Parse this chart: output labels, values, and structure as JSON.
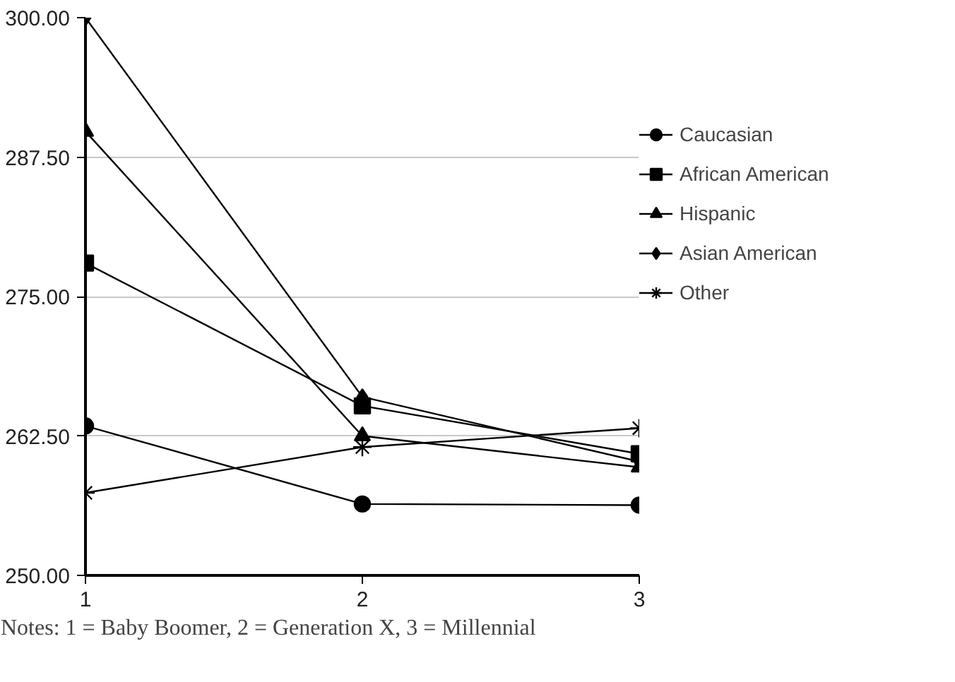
{
  "chart_data": {
    "type": "line",
    "x": [
      1,
      2,
      3
    ],
    "xlim": [
      1,
      3
    ],
    "xticks": [
      1,
      2,
      3
    ],
    "ylim": [
      250,
      300
    ],
    "yticks": [
      {
        "value": 250,
        "label": "250.00"
      },
      {
        "value": 262.5,
        "label": "262.50"
      },
      {
        "value": 275,
        "label": "275.00"
      },
      {
        "value": 287.5,
        "label": "287.50"
      },
      {
        "value": 300,
        "label": "300.00"
      }
    ],
    "grid": "y",
    "legend": "right",
    "line_style": "solid",
    "series": [
      {
        "name": "Caucasian",
        "color": "#000000",
        "marker": "circle",
        "values": [
          263.4,
          256.4,
          256.3
        ]
      },
      {
        "name": "African American",
        "color": "#000000",
        "marker": "square",
        "values": [
          278.0,
          265.2,
          260.9
        ]
      },
      {
        "name": "Hispanic",
        "color": "#000000",
        "marker": "triangle",
        "values": [
          289.8,
          262.5,
          259.7
        ]
      },
      {
        "name": "Asian American",
        "color": "#000000",
        "marker": "diamond",
        "values": [
          300.0,
          266.0,
          260.2
        ]
      },
      {
        "name": "Other",
        "color": "#000000",
        "marker": "cross",
        "values": [
          257.4,
          261.5,
          263.2
        ]
      }
    ],
    "annotations": [
      "Notes: 1 = Baby Boomer, 2 = Generation X, 3 = Millennial"
    ]
  }
}
